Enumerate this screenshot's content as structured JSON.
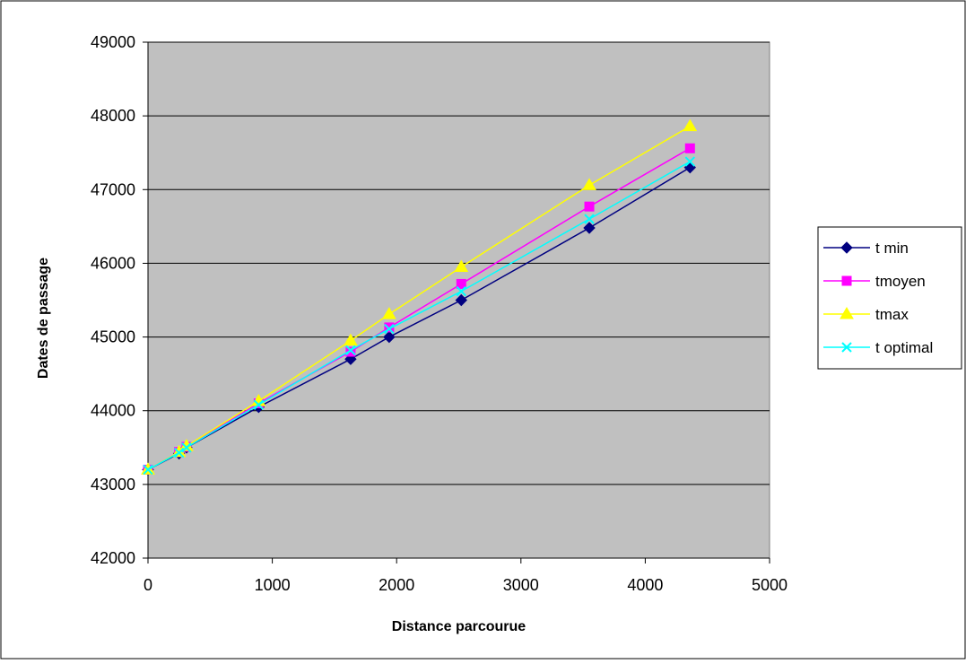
{
  "chart_data": {
    "type": "line",
    "title": "",
    "xlabel": "Distance parcourue",
    "ylabel": "Dates de passage",
    "xlim": [
      0,
      5000
    ],
    "ylim": [
      42000,
      49000
    ],
    "xticks": [
      0,
      1000,
      2000,
      3000,
      4000,
      5000
    ],
    "yticks": [
      42000,
      43000,
      44000,
      45000,
      46000,
      47000,
      48000,
      49000
    ],
    "grid": "horizontal",
    "plot_background": "#c0c0c0",
    "legend_position": "right",
    "x": [
      0,
      250,
      310,
      890,
      1630,
      1940,
      2520,
      3550,
      4360
    ],
    "series": [
      {
        "name": "t min",
        "color": "#000080",
        "marker": "diamond",
        "values": [
          43200,
          43420,
          43500,
          44050,
          44700,
          45000,
          45500,
          46480,
          47300
        ]
      },
      {
        "name": "tmoyen",
        "color": "#ff00ff",
        "marker": "square",
        "values": [
          43200,
          43440,
          43510,
          44100,
          44800,
          45130,
          45720,
          46770,
          47560
        ]
      },
      {
        "name": "tmax",
        "color": "#ffff00",
        "marker": "triangle",
        "values": [
          43200,
          43440,
          43520,
          44130,
          44950,
          45310,
          45950,
          47060,
          47860
        ]
      },
      {
        "name": "t optimal",
        "color": "#00ffff",
        "marker": "x",
        "values": [
          43200,
          43430,
          43500,
          44080,
          44820,
          45110,
          45620,
          46600,
          47380
        ]
      }
    ]
  }
}
